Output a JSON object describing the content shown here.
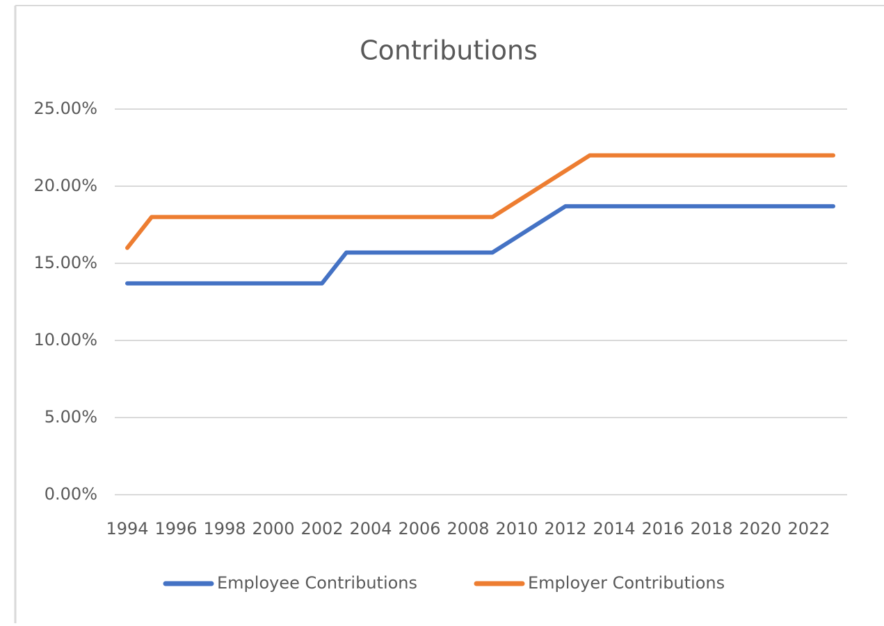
{
  "chart_data": {
    "type": "line",
    "title": "Contributions",
    "categories": [
      "1994",
      null,
      "1996",
      null,
      "1998",
      null,
      "2000",
      null,
      "2002",
      null,
      "2004",
      null,
      "2006",
      null,
      "2008",
      null,
      "2010",
      null,
      "2012",
      null,
      "2014",
      null,
      "2016",
      null,
      "2018",
      null,
      "2020",
      null,
      "2022",
      null
    ],
    "series": [
      {
        "name": "Employee Contributions",
        "color": "#4472c4",
        "values": [
          13.7,
          13.7,
          13.7,
          13.7,
          13.7,
          13.7,
          13.7,
          13.7,
          13.7,
          15.7,
          15.7,
          15.7,
          15.7,
          15.7,
          15.7,
          15.7,
          16.7,
          17.7,
          18.7,
          18.7,
          18.7,
          18.7,
          18.7,
          18.7,
          18.7,
          18.7,
          18.7,
          18.7,
          18.7,
          18.7
        ]
      },
      {
        "name": "Employer Contributions",
        "color": "#ed7d31",
        "values": [
          16,
          18,
          18,
          18,
          18,
          18,
          18,
          18,
          18,
          18,
          18,
          18,
          18,
          18,
          18,
          18,
          19,
          20,
          21,
          22,
          22,
          22,
          22,
          22,
          22,
          22,
          22,
          22,
          22,
          22
        ]
      }
    ],
    "ylim": [
      0,
      25
    ],
    "yticks": [
      {
        "value": 0,
        "label": "0.00%"
      },
      {
        "value": 5,
        "label": "5.00%"
      },
      {
        "value": 10,
        "label": "10.00%"
      },
      {
        "value": 15,
        "label": "15.00%"
      },
      {
        "value": 20,
        "label": "20.00%"
      },
      {
        "value": 25,
        "label": "25.00%"
      }
    ],
    "grid": true,
    "legend": "bottom"
  }
}
